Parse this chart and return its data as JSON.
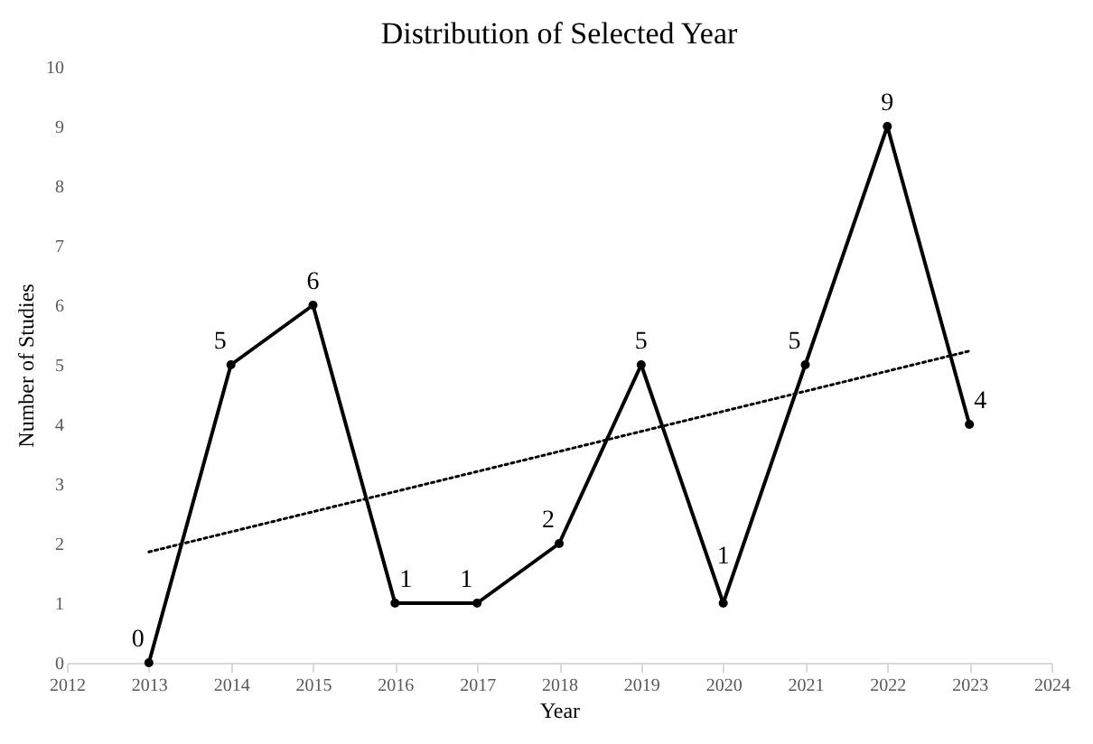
{
  "chart_data": {
    "type": "line",
    "title": "Distribution of Selected Year",
    "xlabel": "Year",
    "ylabel": "Number of Studies",
    "x": [
      2013,
      2014,
      2015,
      2016,
      2017,
      2018,
      2019,
      2020,
      2021,
      2022,
      2023
    ],
    "xlim": [
      2012,
      2024
    ],
    "xticks": [
      2012,
      2013,
      2014,
      2015,
      2016,
      2017,
      2018,
      2019,
      2020,
      2021,
      2022,
      2023,
      2024
    ],
    "ylim": [
      0,
      10
    ],
    "yticks": [
      0,
      1,
      2,
      3,
      4,
      5,
      6,
      7,
      8,
      9,
      10
    ],
    "grid": false,
    "marker": "circle",
    "line_style": "solid",
    "series": [
      {
        "color": "#000000",
        "values": [
          0,
          5,
          6,
          1,
          1,
          2,
          5,
          1,
          5,
          9,
          4
        ],
        "value_labels": [
          "0",
          "5",
          "6",
          "1",
          "1",
          "2",
          "5",
          "1",
          "5",
          "9",
          "4"
        ]
      },
      {
        "type": "line",
        "color": "#000000",
        "x": [
          2013,
          2023
        ],
        "values": [
          1.86,
          5.23
        ],
        "line_style": "dotted",
        "marker": "none"
      }
    ]
  }
}
